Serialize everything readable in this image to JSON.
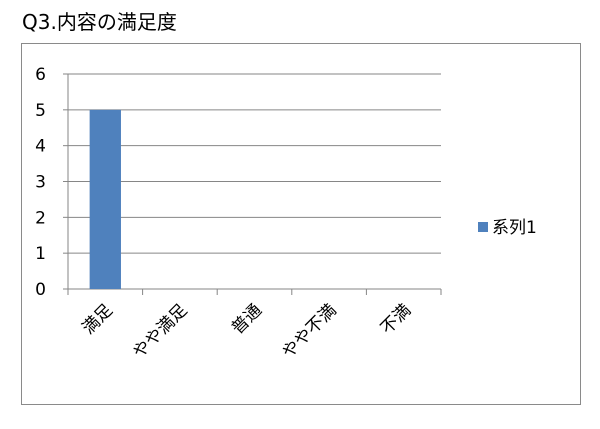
{
  "chart_data": {
    "type": "bar",
    "title": "Q3.内容の満足度",
    "categories": [
      "満足",
      "やや満足",
      "普通",
      "やや不満",
      "不満"
    ],
    "series": [
      {
        "name": "系列1",
        "values": [
          5,
          0,
          0,
          0,
          0
        ],
        "color": "#4f81bd"
      }
    ],
    "ylim": [
      0,
      6
    ],
    "yticks": [
      "0",
      "1",
      "2",
      "3",
      "4",
      "5",
      "6"
    ],
    "grid": true,
    "legend": "right"
  }
}
